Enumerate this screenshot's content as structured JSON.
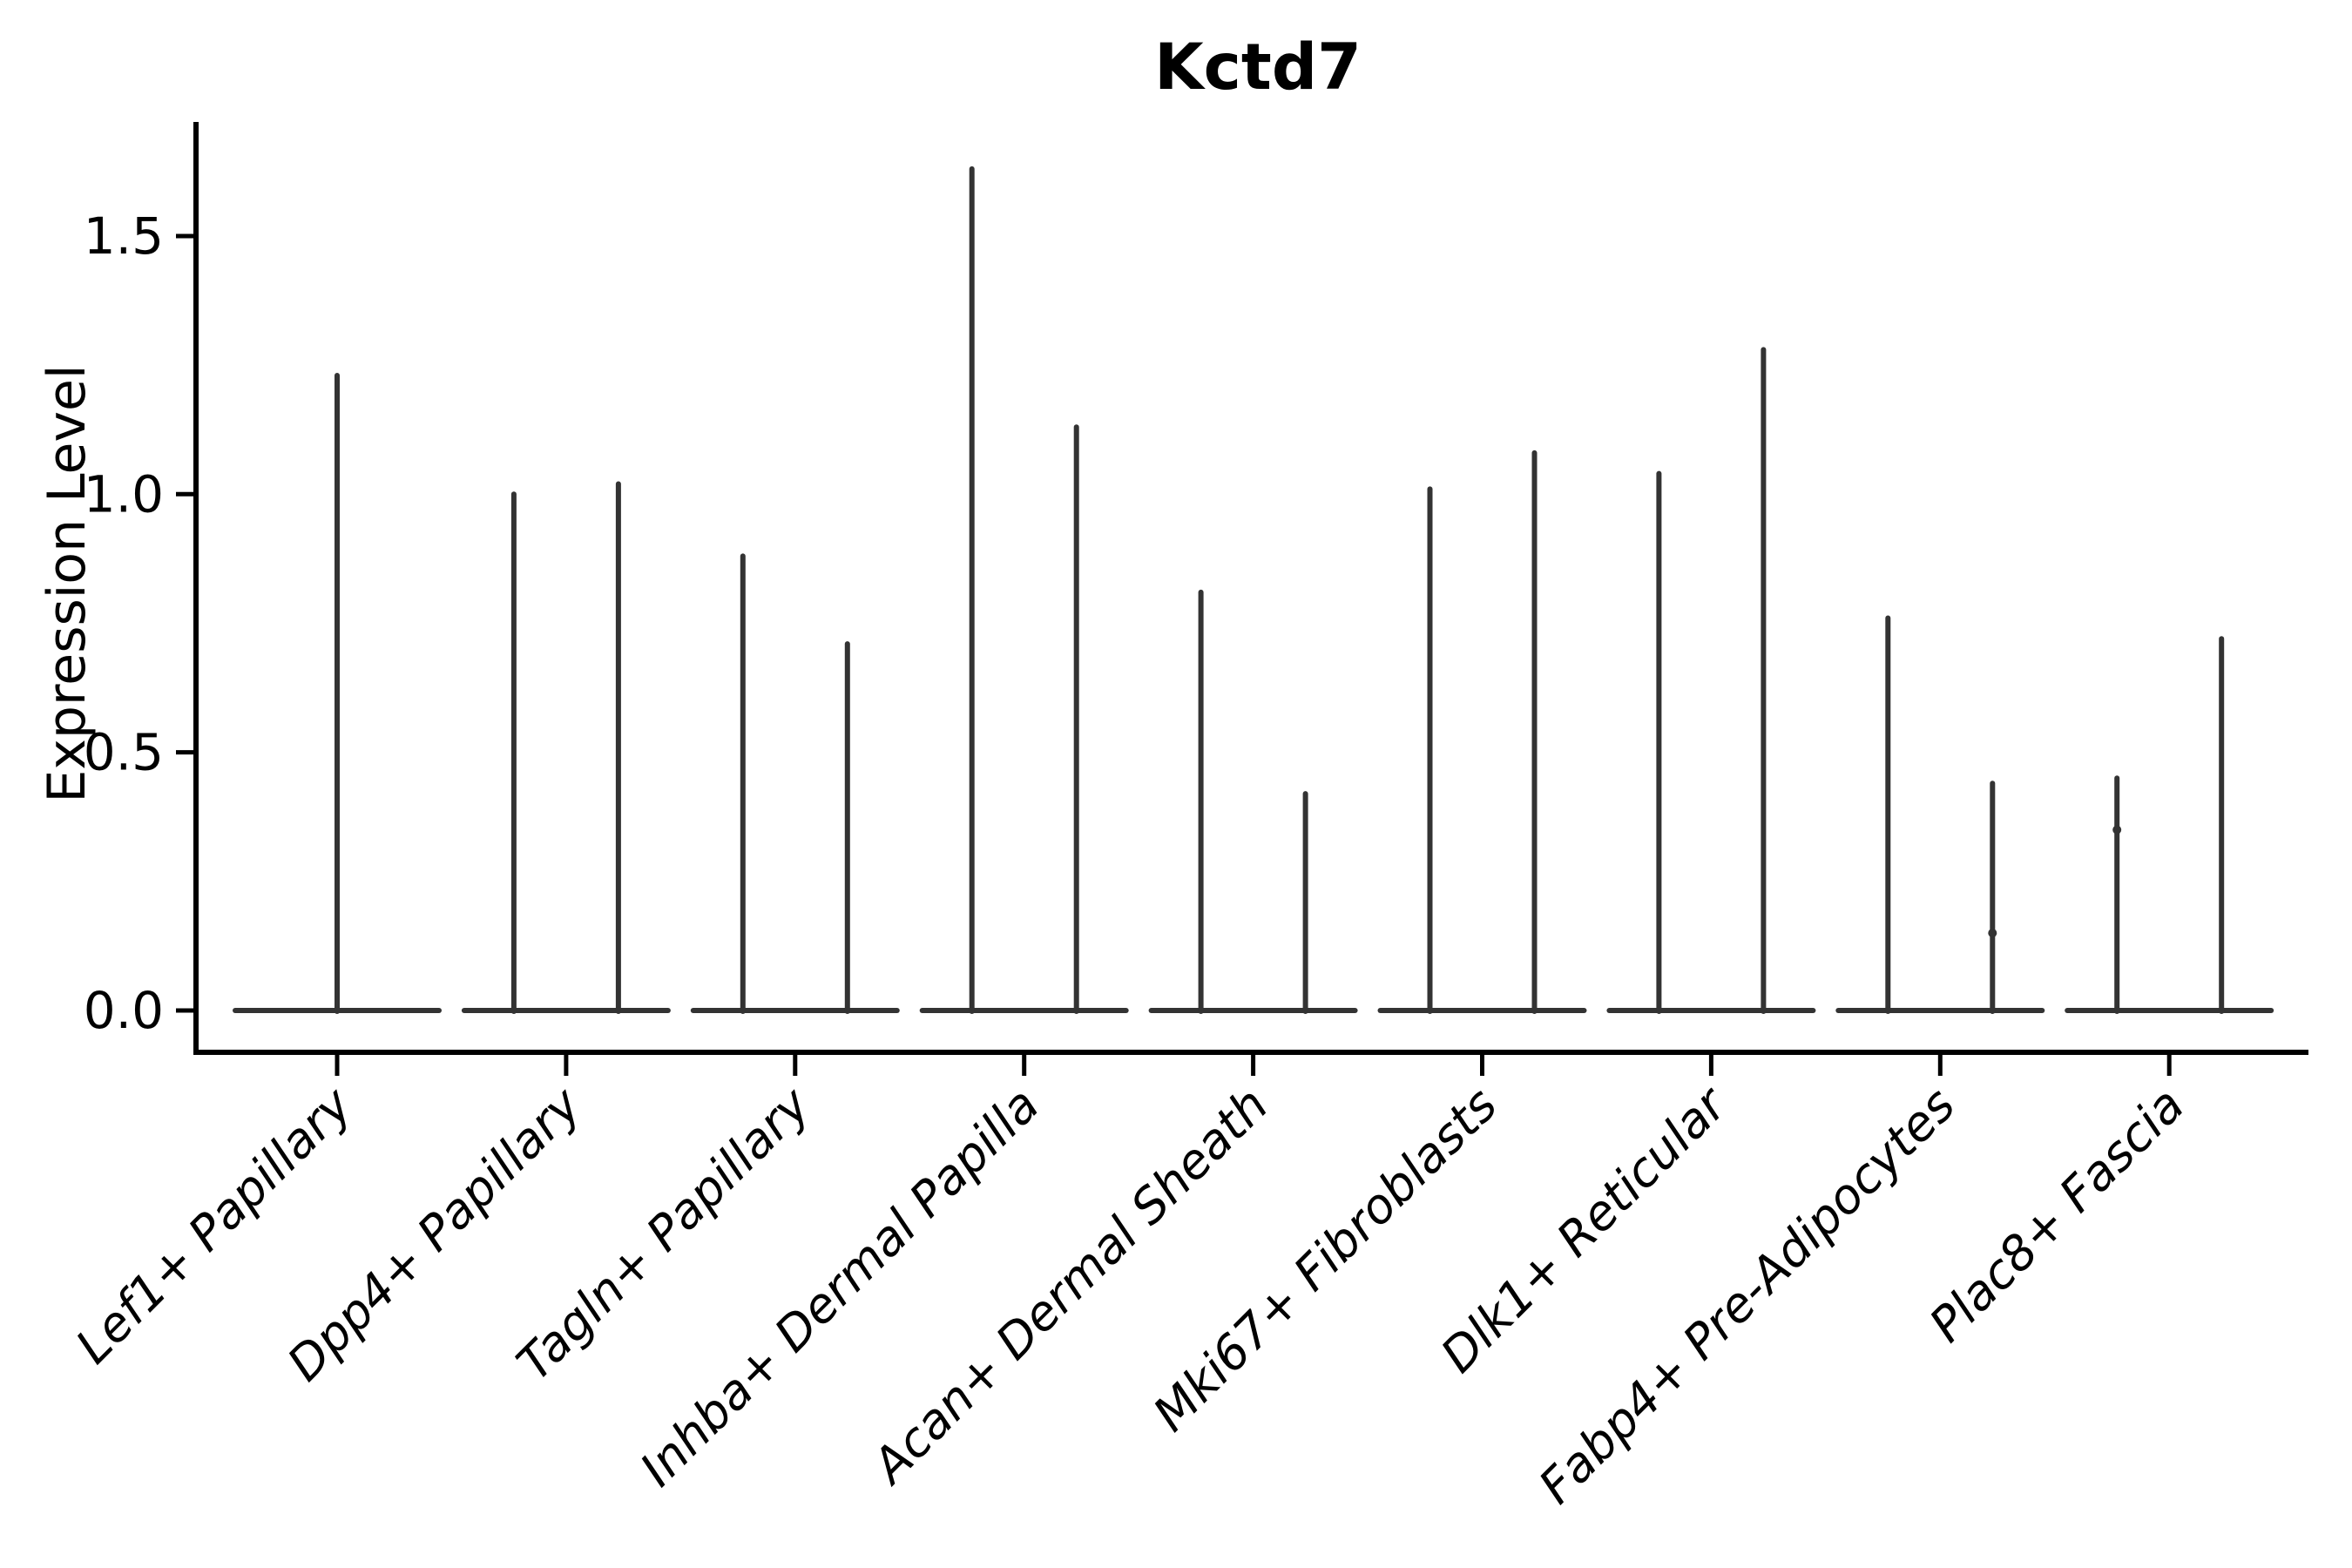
{
  "chart_data": {
    "type": "violin",
    "title": "Kctd7",
    "ylabel": "Expression Level",
    "xlabel": "",
    "ylim": [
      0,
      1.72
    ],
    "yticks": [
      0.0,
      0.5,
      1.0,
      1.5
    ],
    "ytick_labels": [
      "0.0",
      "0.5",
      "1.0",
      "1.5"
    ],
    "grid": false,
    "legend": "none",
    "x_tick_label_rotation_deg": 45,
    "categories": [
      "Lef1+ Papillary",
      "Dpp4+ Papillary",
      "Tagln+ Papillary",
      "Inhba+ Dermal Papilla",
      "Acan+ Dermal Sheath",
      "Mki67+ Fibroblasts",
      "Dlk1+ Reticular",
      "Fabp4+ Pre-Adipocytes",
      "Plac8+ Fascia"
    ],
    "violins": [
      {
        "category": "Lef1+ Papillary",
        "max_values": [
          1.23
        ]
      },
      {
        "category": "Dpp4+ Papillary",
        "max_values": [
          1.0,
          1.02
        ]
      },
      {
        "category": "Tagln+ Papillary",
        "max_values": [
          0.88,
          0.71
        ]
      },
      {
        "category": "Inhba+ Dermal Papilla",
        "max_values": [
          1.63,
          1.13
        ]
      },
      {
        "category": "Acan+ Dermal Sheath",
        "max_values": [
          0.81,
          0.42
        ]
      },
      {
        "category": "Mki67+ Fibroblasts",
        "max_values": [
          1.01,
          1.08
        ]
      },
      {
        "category": "Dlk1+ Reticular",
        "max_values": [
          1.04,
          1.28
        ]
      },
      {
        "category": "Fabp4+ Pre-Adipocytes",
        "max_values": [
          0.76,
          0.44
        ]
      },
      {
        "category": "Plac8+ Fascia",
        "max_values": [
          0.45,
          0.72
        ]
      }
    ],
    "description": "Violin plot of Kctd7 expression; nearly all cells at 0 so each violin collapses to a flat base line with a thin spike up to its maximum expression value. Categories with two sub-violins show two spikes.",
    "point_markers": [
      {
        "category_index": 7,
        "violin_index": 1,
        "value": 0.15
      },
      {
        "category_index": 8,
        "violin_index": 0,
        "value": 0.35
      }
    ],
    "colors": {
      "violin_line": "#333333",
      "axis": "#000000",
      "text": "#000000",
      "background": "#ffffff"
    }
  }
}
